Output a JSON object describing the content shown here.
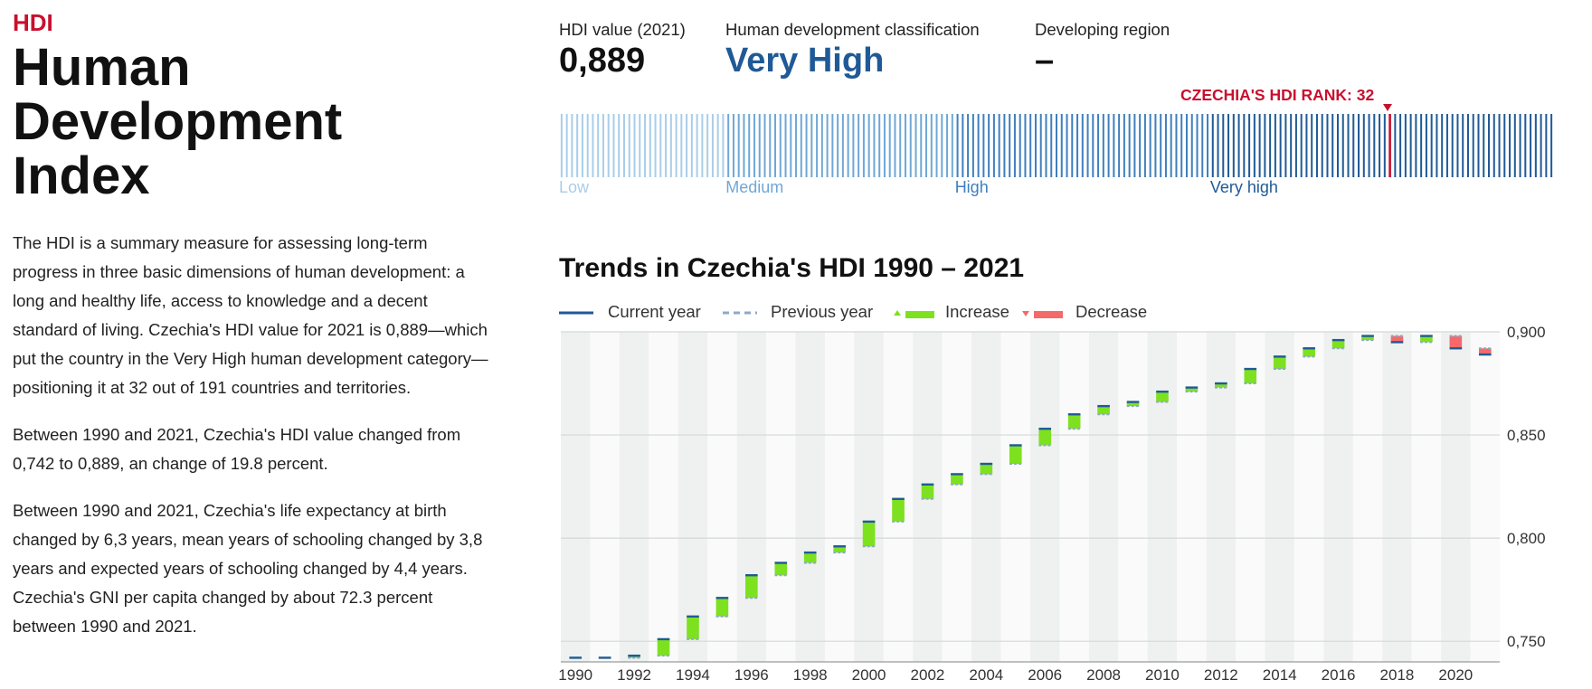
{
  "intro": {
    "kicker": "HDI",
    "title": "Human Development Index",
    "paragraphs": [
      "The HDI is a summary measure for assessing long-term progress in three basic dimensions of human development: a long and healthy life, access to knowledge and a decent standard of living. Czechia's HDI value for 2021 is 0,889—which put the country in the Very High human development category—positioning it at 32 out of 191 countries and territories.",
      "Between 1990 and 2021, Czechia's HDI value changed from 0,742 to 0,889, an change of 19.8 percent.",
      "Between 1990 and 2021, Czechia's life expectancy at birth changed by 6,3 years, mean years of schooling changed by 3,8 years and expected years of schooling changed by 4,4 years. Czechia's GNI per capita changed by about 72.3 percent between 1990 and 2021."
    ]
  },
  "stats": [
    {
      "label": "HDI value (2021)",
      "value": "0,889"
    },
    {
      "label": "Human development classification",
      "value": "Very High"
    },
    {
      "label": "Developing region",
      "value": "–"
    }
  ],
  "rank_bar": {
    "rank_label": "CZECHIA'S HDI RANK: 32",
    "rank": 32,
    "total": 191,
    "categories": [
      {
        "label": "Low",
        "count": 32,
        "color": "#a9cde9"
      },
      {
        "label": "Medium",
        "count": 44,
        "color": "#6fa7d6"
      },
      {
        "label": "High",
        "count": 49,
        "color": "#3f7fbd"
      },
      {
        "label": "Very high",
        "count": 66,
        "color": "#1f5a96"
      }
    ],
    "rank_color": "#c8102e"
  },
  "legend": {
    "current_year": "Current year",
    "previous_year": "Previous year",
    "increase": "Increase",
    "decrease": "Decrease"
  },
  "colors": {
    "current": "#1f5a96",
    "previous": "#8fa8c8",
    "increase": "#7ee11f",
    "decrease": "#f46a6a"
  },
  "chart_data": {
    "type": "bar",
    "title": "Trends in Czechia's HDI 1990 – 2021",
    "x": [
      1990,
      1991,
      1992,
      1993,
      1994,
      1995,
      1996,
      1997,
      1998,
      1999,
      2000,
      2001,
      2002,
      2003,
      2004,
      2005,
      2006,
      2007,
      2008,
      2009,
      2010,
      2011,
      2012,
      2013,
      2014,
      2015,
      2016,
      2017,
      2018,
      2019,
      2020,
      2021
    ],
    "values": [
      0.742,
      0.742,
      0.743,
      0.751,
      0.762,
      0.771,
      0.782,
      0.788,
      0.793,
      0.796,
      0.808,
      0.819,
      0.826,
      0.831,
      0.836,
      0.845,
      0.853,
      0.86,
      0.864,
      0.866,
      0.871,
      0.873,
      0.875,
      0.882,
      0.888,
      0.892,
      0.896,
      0.898,
      0.895,
      0.898,
      0.892,
      0.889
    ],
    "x_ticks": [
      "1990",
      "1992",
      "1994",
      "1996",
      "1998",
      "2000",
      "2002",
      "2004",
      "2006",
      "2008",
      "2010",
      "2012",
      "2014",
      "2016",
      "2018",
      "2020"
    ],
    "y_ticks": [
      "0,750",
      "0,800",
      "0,850",
      "0,900"
    ],
    "ylim": [
      0.74,
      0.9
    ],
    "grid": true,
    "legend_position": "top"
  }
}
